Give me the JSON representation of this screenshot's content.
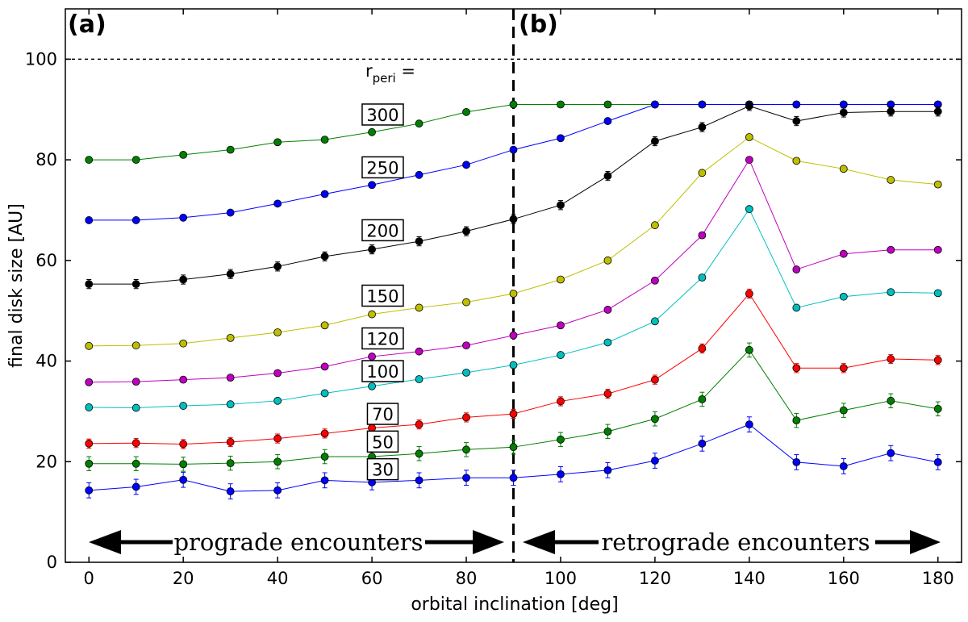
{
  "chart_data": {
    "type": "line",
    "xlabel": "orbital inclination [deg]",
    "ylabel": "final disk size [AU]",
    "xlim": [
      -5,
      185
    ],
    "ylim": [
      0,
      110
    ],
    "xticks": [
      0,
      20,
      40,
      60,
      80,
      100,
      120,
      140,
      160,
      180
    ],
    "yticks": [
      0,
      20,
      40,
      60,
      80,
      100
    ],
    "panel_labels": [
      "(a)",
      "(b)"
    ],
    "reference_line": {
      "y": 100,
      "style": "dotted"
    },
    "divider": {
      "x": 90,
      "style": "dashed"
    },
    "legend_title_main": "r",
    "legend_title_sub": "peri",
    "legend_title_suffix": " =",
    "annotations": {
      "prograde": "prograde encounters",
      "retrograde": "retrograde encounters"
    },
    "x": [
      0,
      10,
      20,
      30,
      40,
      50,
      60,
      70,
      80,
      90,
      100,
      110,
      120,
      130,
      140,
      150,
      160,
      170,
      180
    ],
    "series": [
      {
        "name": "300",
        "color": "#008000",
        "label_x": 64,
        "label_y": 89,
        "values": [
          80,
          80,
          81,
          82,
          83.5,
          84,
          85.5,
          87.2,
          89.5,
          91,
          91,
          91,
          91,
          91,
          91,
          91,
          91,
          91,
          91
        ],
        "errors": [
          0.2,
          0.2,
          0.2,
          0.2,
          0.2,
          0.2,
          0.2,
          0.2,
          0.2,
          0.2,
          0.2,
          0.2,
          0.2,
          0.2,
          0.2,
          0.2,
          0.2,
          0.2,
          0.2
        ]
      },
      {
        "name": "250",
        "color": "#0000ff",
        "label_x": 64,
        "label_y": 78.5,
        "values": [
          68,
          68,
          68.5,
          69.5,
          71.3,
          73.2,
          75,
          77,
          79,
          82,
          84.3,
          87.7,
          91,
          91,
          91,
          91,
          91,
          91,
          91
        ],
        "errors": [
          0.3,
          0.3,
          0.3,
          0.3,
          0.3,
          0.3,
          0.3,
          0.3,
          0.3,
          0.3,
          0.3,
          0.3,
          0.3,
          0.3,
          0.3,
          0.3,
          0.3,
          0.3,
          0.3
        ]
      },
      {
        "name": "200",
        "color": "#000000",
        "label_x": 64,
        "label_y": 66,
        "values": [
          55.3,
          55.3,
          56.2,
          57.3,
          58.8,
          60.8,
          62.2,
          63.8,
          65.8,
          68.2,
          71,
          76.8,
          83.7,
          86.5,
          90.7,
          87.7,
          89.4,
          89.6,
          89.6
        ],
        "errors": [
          0.9,
          0.9,
          0.9,
          0.9,
          0.9,
          0.9,
          0.9,
          0.9,
          0.9,
          0.9,
          0.9,
          0.9,
          0.9,
          0.9,
          0.9,
          0.9,
          0.9,
          0.9,
          0.9
        ]
      },
      {
        "name": "150",
        "color": "#bfbf00",
        "label_x": 64,
        "label_y": 53,
        "values": [
          43,
          43.1,
          43.5,
          44.6,
          45.7,
          47.1,
          49.3,
          50.6,
          51.7,
          53.4,
          56.2,
          60,
          67,
          77.4,
          84.5,
          79.8,
          78.2,
          76,
          75.1
        ],
        "errors": [
          0.3,
          0.3,
          0.3,
          0.3,
          0.3,
          0.3,
          0.3,
          0.3,
          0.3,
          0.3,
          0.3,
          0.3,
          0.3,
          0.3,
          0.3,
          0.3,
          0.3,
          0.3,
          0.3
        ]
      },
      {
        "name": "120",
        "color": "#bf00bf",
        "label_x": 64,
        "label_y": 44.5,
        "values": [
          35.8,
          35.9,
          36.3,
          36.7,
          37.6,
          38.9,
          40.9,
          41.9,
          43.1,
          45.1,
          47.1,
          50.2,
          56,
          65,
          80,
          58.2,
          61.3,
          62.1,
          62.1
        ],
        "errors": [
          0.3,
          0.3,
          0.3,
          0.3,
          0.3,
          0.3,
          0.3,
          0.3,
          0.3,
          0.3,
          0.3,
          0.3,
          0.3,
          0.3,
          0.3,
          0.3,
          0.3,
          0.3,
          0.3
        ]
      },
      {
        "name": "100",
        "color": "#00bfbf",
        "label_x": 64,
        "label_y": 38,
        "values": [
          30.8,
          30.7,
          31.1,
          31.4,
          32.1,
          33.6,
          35,
          36.4,
          37.7,
          39.2,
          41.2,
          43.7,
          47.9,
          56.6,
          70.2,
          50.6,
          52.8,
          53.7,
          53.5
        ],
        "errors": [
          0.3,
          0.3,
          0.3,
          0.3,
          0.3,
          0.3,
          0.3,
          0.3,
          0.3,
          0.3,
          0.3,
          0.3,
          0.3,
          0.3,
          0.3,
          0.3,
          0.3,
          0.3,
          0.3
        ]
      },
      {
        "name": "70",
        "color": "#ff0000",
        "label_x": 64,
        "label_y": 29.5,
        "values": [
          23.6,
          23.7,
          23.5,
          23.9,
          24.6,
          25.6,
          26.7,
          27.4,
          28.8,
          29.5,
          32,
          33.5,
          36.3,
          42.5,
          53.4,
          38.6,
          38.6,
          40.4,
          40.2
        ],
        "errors": [
          0.9,
          0.9,
          0.9,
          0.9,
          0.9,
          0.9,
          0.9,
          0.9,
          0.9,
          0.9,
          0.9,
          0.9,
          0.9,
          0.9,
          0.9,
          0.9,
          0.9,
          0.9,
          0.9
        ]
      },
      {
        "name": "50",
        "color": "#008000",
        "label_x": 64,
        "label_y": 24,
        "values": [
          19.6,
          19.6,
          19.5,
          19.7,
          20,
          21,
          21,
          21.6,
          22.4,
          22.9,
          24.4,
          26,
          28.5,
          32.4,
          42.2,
          28.2,
          30.2,
          32.1,
          30.5
        ],
        "errors": [
          1.4,
          1.4,
          1.4,
          1.4,
          1.4,
          1.4,
          1.4,
          1.4,
          1.4,
          1.4,
          1.4,
          1.4,
          1.4,
          1.4,
          1.4,
          1.4,
          1.4,
          1.4,
          1.4
        ]
      },
      {
        "name": "30",
        "color": "#0000ff",
        "label_x": 64,
        "label_y": 18.5,
        "values": [
          14.3,
          15,
          16.4,
          14.1,
          14.3,
          16.3,
          15.9,
          16.3,
          16.8,
          16.8,
          17.5,
          18.3,
          20.2,
          23.6,
          27.4,
          19.9,
          19.1,
          21.7,
          19.9
        ],
        "errors": [
          1.5,
          1.5,
          1.5,
          1.5,
          1.5,
          1.5,
          1.5,
          1.5,
          1.5,
          1.5,
          1.5,
          1.5,
          1.5,
          1.5,
          1.5,
          1.5,
          1.5,
          1.5,
          1.5
        ]
      }
    ]
  }
}
